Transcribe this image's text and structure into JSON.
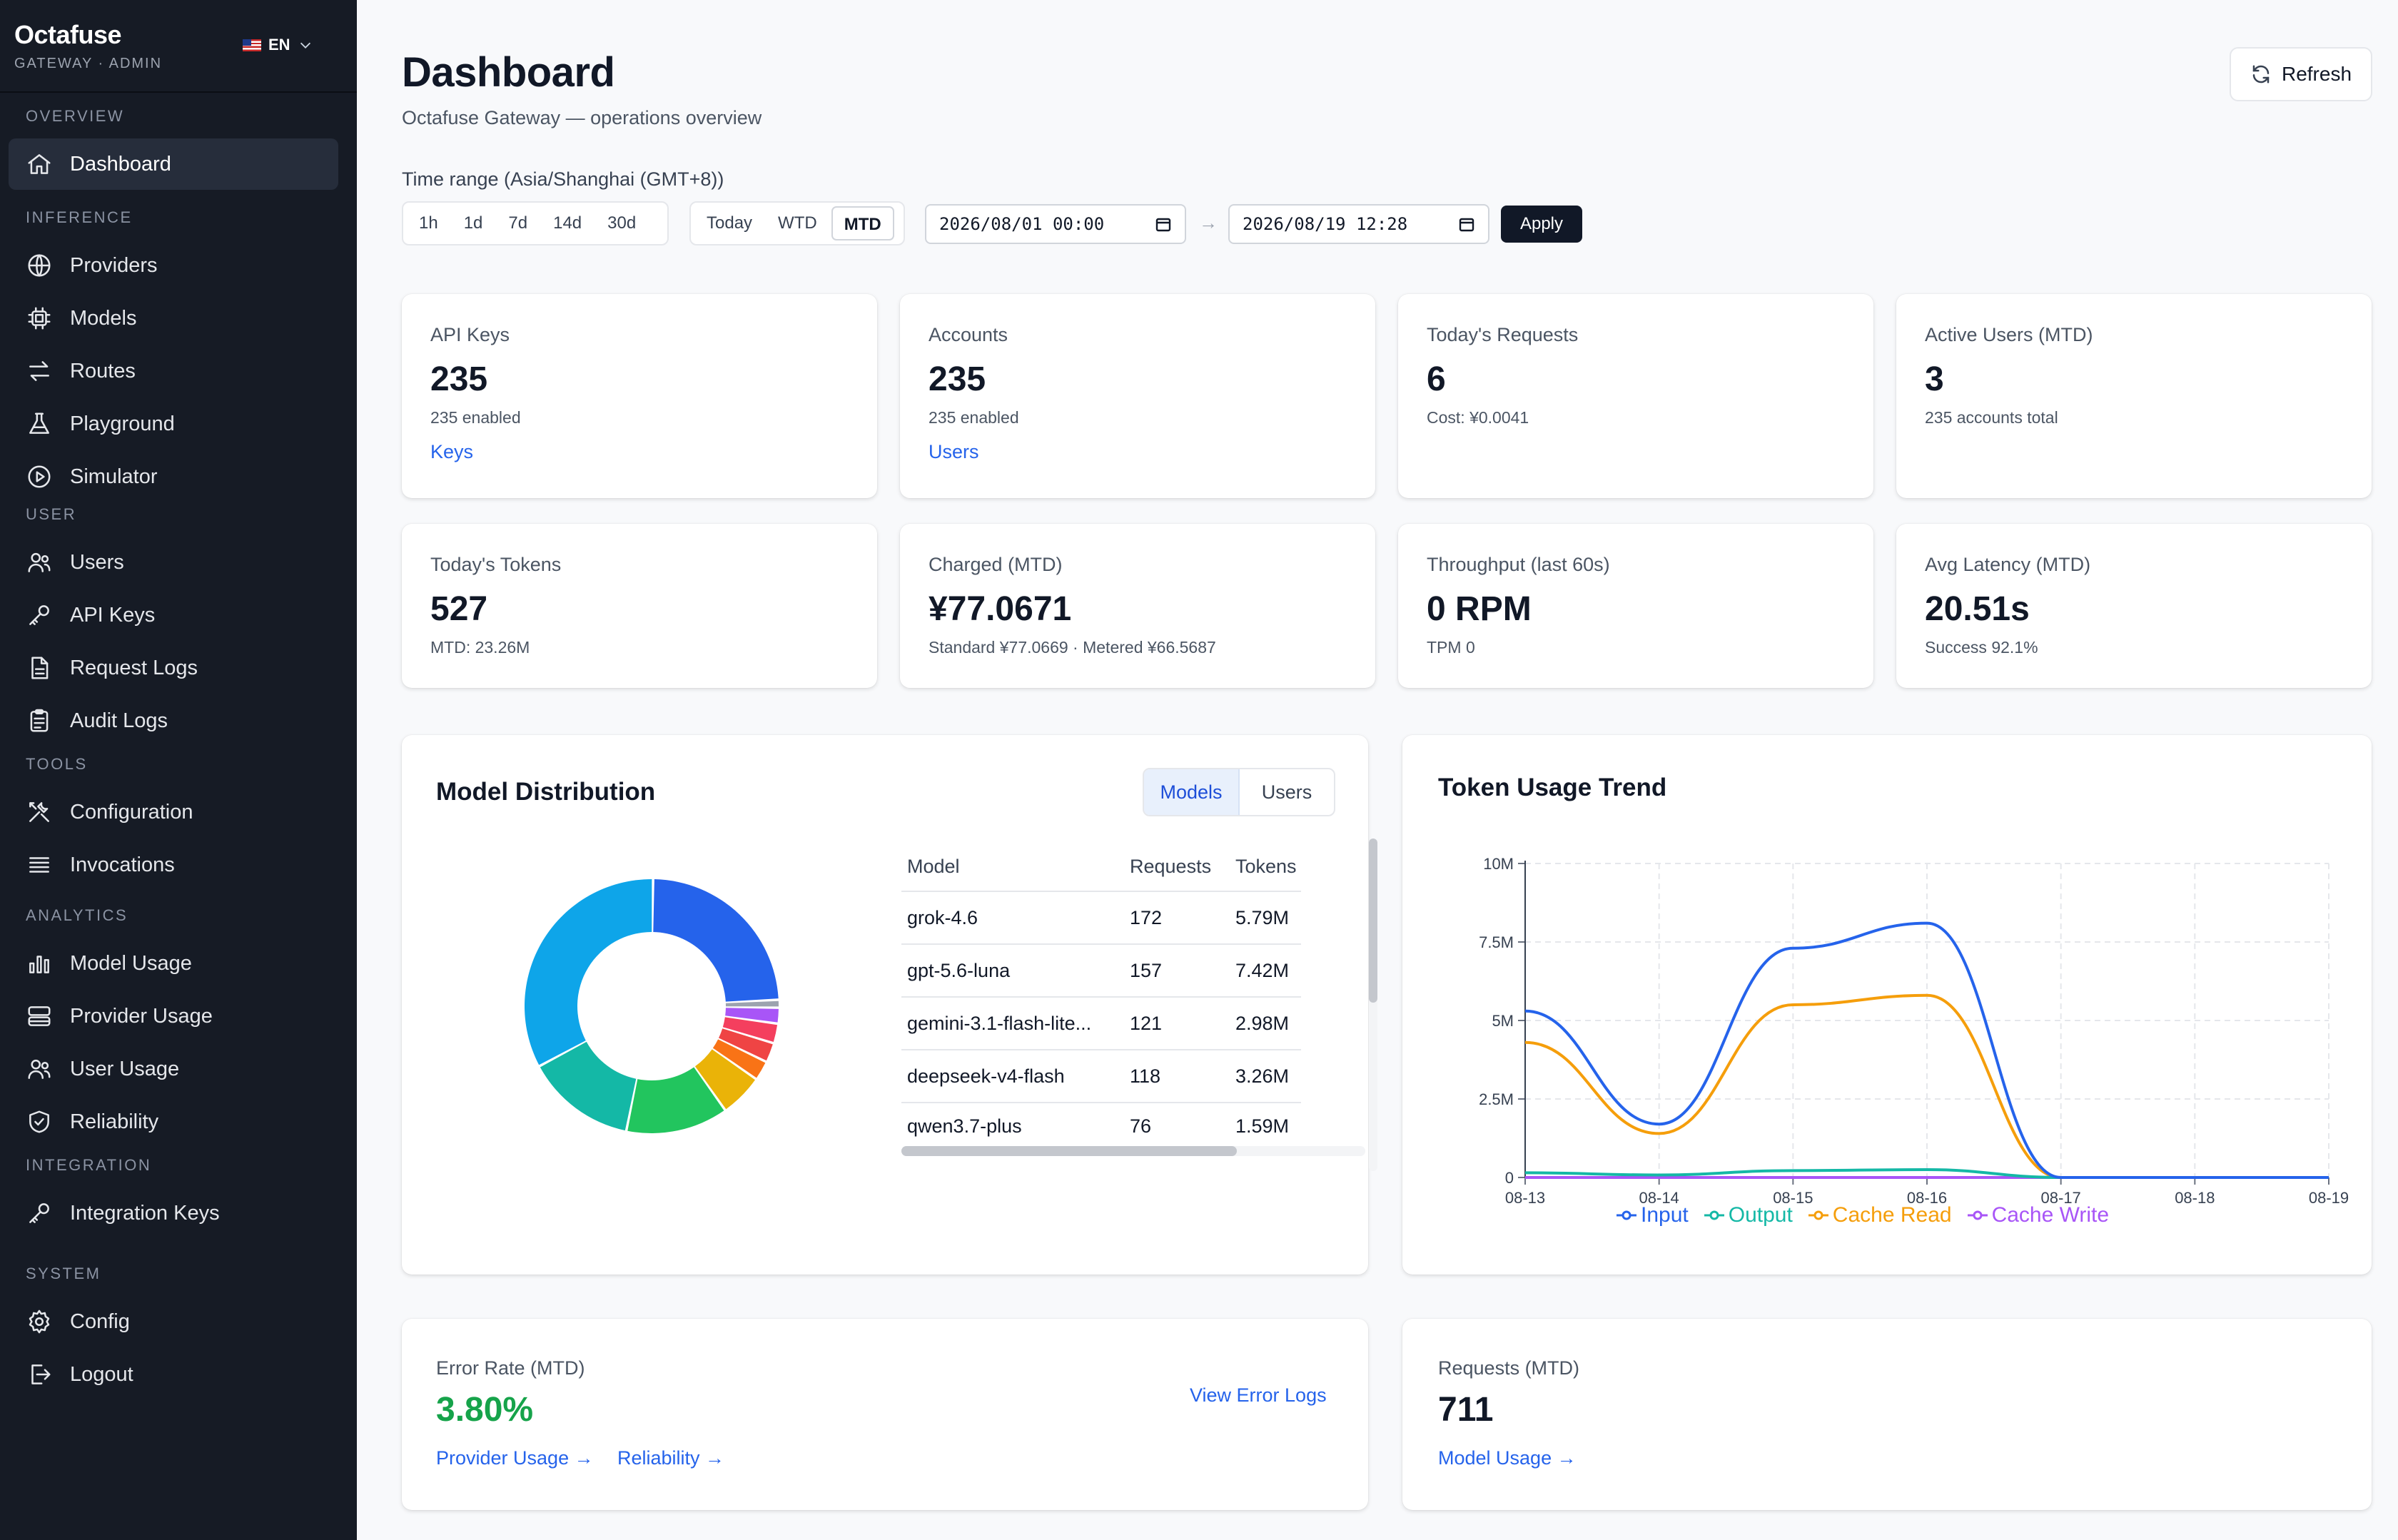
{
  "brand": {
    "name": "Octafuse",
    "subtitle": "GATEWAY · ADMIN",
    "language": "EN"
  },
  "sidebar": {
    "sections": [
      {
        "title": "OVERVIEW",
        "items": [
          {
            "label": "Dashboard",
            "icon": "home-icon",
            "active": true
          }
        ]
      },
      {
        "title": "INFERENCE",
        "items": [
          {
            "label": "Providers",
            "icon": "globe-icon"
          },
          {
            "label": "Models",
            "icon": "chip-icon"
          },
          {
            "label": "Routes",
            "icon": "arrows-icon"
          },
          {
            "label": "Playground",
            "icon": "flask-icon"
          },
          {
            "label": "Simulator",
            "icon": "play-circle-icon"
          }
        ]
      },
      {
        "title": "USER",
        "items": [
          {
            "label": "Users",
            "icon": "users-icon"
          },
          {
            "label": "API Keys",
            "icon": "key-icon"
          },
          {
            "label": "Request Logs",
            "icon": "document-icon"
          },
          {
            "label": "Audit Logs",
            "icon": "clipboard-icon"
          }
        ]
      },
      {
        "title": "TOOLS",
        "items": [
          {
            "label": "Configuration",
            "icon": "tools-icon"
          },
          {
            "label": "Invocations",
            "icon": "list-icon"
          }
        ]
      },
      {
        "title": "ANALYTICS",
        "items": [
          {
            "label": "Model Usage",
            "icon": "bar-chart-icon"
          },
          {
            "label": "Provider Usage",
            "icon": "server-icon"
          },
          {
            "label": "User Usage",
            "icon": "users-icon"
          },
          {
            "label": "Reliability",
            "icon": "shield-icon"
          }
        ]
      },
      {
        "title": "INTEGRATION",
        "items": [
          {
            "label": "Integration Keys",
            "icon": "key-icon"
          }
        ]
      },
      {
        "title": "SYSTEM",
        "items": [
          {
            "label": "Config",
            "icon": "gear-icon"
          },
          {
            "label": "Logout",
            "icon": "logout-icon"
          }
        ]
      }
    ]
  },
  "header": {
    "title": "Dashboard",
    "subtitle": "Octafuse Gateway — operations overview",
    "refresh_label": "Refresh"
  },
  "time_range": {
    "label": "Time range (Asia/Shanghai (GMT+8))",
    "quick": [
      "1h",
      "1d",
      "7d",
      "14d",
      "30d"
    ],
    "periods": [
      "Today",
      "WTD",
      "MTD"
    ],
    "selected_period": "MTD",
    "start": "2026/08/01 00:00",
    "end": "2026/08/19 12:28",
    "apply_label": "Apply"
  },
  "stats": [
    {
      "label": "API Keys",
      "value": "235",
      "sub": "235 enabled",
      "link": "Keys"
    },
    {
      "label": "Accounts",
      "value": "235",
      "sub": "235 enabled",
      "link": "Users"
    },
    {
      "label": "Today's Requests",
      "value": "6",
      "sub": "Cost: ¥0.0041"
    },
    {
      "label": "Active Users (MTD)",
      "value": "3",
      "sub": "235 accounts total"
    },
    {
      "label": "Today's Tokens",
      "value": "527",
      "sub": "MTD: 23.26M"
    },
    {
      "label": "Charged (MTD)",
      "value": "¥77.0671",
      "sub": "Standard ¥77.0669 · Metered ¥66.5687"
    },
    {
      "label": "Throughput (last 60s)",
      "value": "0 RPM",
      "sub": "TPM 0"
    },
    {
      "label": "Avg Latency (MTD)",
      "value": "20.51s",
      "sub": "Success 92.1%"
    }
  ],
  "model_distribution": {
    "title": "Model Distribution",
    "tabs": [
      "Models",
      "Users"
    ],
    "active_tab": "Models",
    "columns": [
      "Model",
      "Requests",
      "Tokens"
    ],
    "rows": [
      {
        "model": "grok-4.6",
        "requests": "172",
        "tokens": "5.79M"
      },
      {
        "model": "gpt-5.6-luna",
        "requests": "157",
        "tokens": "7.42M"
      },
      {
        "model": "gemini-3.1-flash-lite...",
        "requests": "121",
        "tokens": "2.98M"
      },
      {
        "model": "deepseek-v4-flash",
        "requests": "118",
        "tokens": "3.26M"
      },
      {
        "model": "qwen3.7-plus",
        "requests": "76",
        "tokens": "1.59M"
      }
    ],
    "donut_colors": [
      "#2563eb",
      "#9ca3af",
      "#a855f7",
      "#f43f5e",
      "#ef4444",
      "#f97316",
      "#eab308",
      "#22c55e",
      "#14b8a6",
      "#0ea5e9"
    ]
  },
  "chart_data": {
    "type": "line",
    "title": "Token Usage Trend",
    "x": [
      "08-13",
      "08-14",
      "08-15",
      "08-16",
      "08-17",
      "08-18",
      "08-19"
    ],
    "y_ticks": [
      "0",
      "2.5M",
      "5M",
      "7.5M",
      "10M"
    ],
    "ylim": [
      0,
      10000000
    ],
    "grid": true,
    "legend_position": "bottom",
    "series": [
      {
        "name": "Input",
        "color": "#2563eb",
        "values": [
          5300000,
          1700000,
          7300000,
          8100000,
          0,
          0,
          0
        ]
      },
      {
        "name": "Output",
        "color": "#14b8a6",
        "values": [
          150000,
          80000,
          220000,
          250000,
          0,
          0,
          0
        ]
      },
      {
        "name": "Cache Read",
        "color": "#f59e0b",
        "values": [
          4300000,
          1400000,
          5500000,
          5800000,
          0,
          0,
          0
        ]
      },
      {
        "name": "Cache Write",
        "color": "#a855f7",
        "values": [
          0,
          0,
          0,
          0,
          0,
          0,
          0
        ]
      }
    ]
  },
  "error_rate": {
    "label": "Error Rate (MTD)",
    "value": "3.80%",
    "view_link": "View Error Logs",
    "links": [
      "Provider Usage →",
      "Reliability →"
    ],
    "color": "#16a34a"
  },
  "requests_mtd": {
    "label": "Requests (MTD)",
    "value": "711",
    "link": "Model Usage →"
  }
}
